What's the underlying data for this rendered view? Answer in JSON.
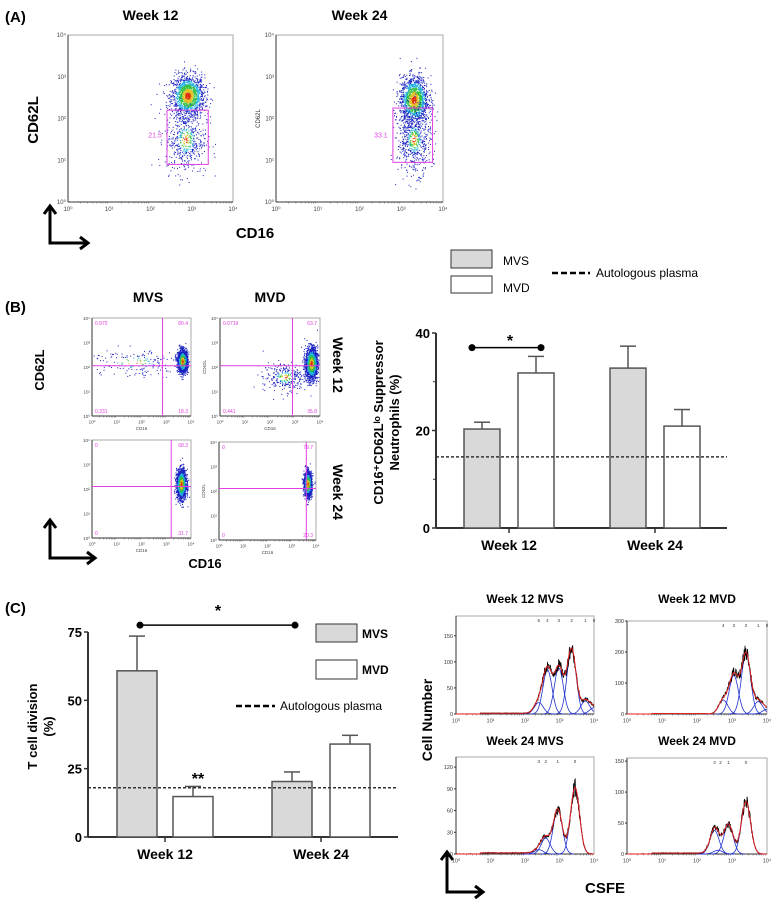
{
  "colors": {
    "gate": "#e040e0",
    "mvs_fill": "#d9d9d9",
    "mvd_fill": "#ffffff",
    "bar_stroke": "#555555",
    "fit": "#e02020",
    "component": "#2030d0",
    "raw": "#000000"
  },
  "log_ticks": [
    "10⁰",
    "10¹",
    "10²",
    "10³",
    "10⁴"
  ],
  "panel_a": {
    "label": "(A)",
    "ylabel": "CD62L",
    "xlabel": "CD16",
    "inner_ylabel": "CD62L",
    "plots": [
      {
        "title": "Week 12",
        "gate_value": "21.5",
        "gate_x": [
          2.4,
          3.4
        ],
        "gate_y": [
          0.9,
          2.2
        ],
        "populations": [
          {
            "x": 2.9,
            "y": 2.55,
            "sx": 0.2,
            "sy": 0.25,
            "n": 1400
          },
          {
            "x": 2.85,
            "y": 1.5,
            "sx": 0.25,
            "sy": 0.4,
            "n": 500
          }
        ]
      },
      {
        "title": "Week 24",
        "gate_value": "33.1",
        "gate_x": [
          2.8,
          3.75
        ],
        "gate_y": [
          0.95,
          2.25
        ],
        "populations": [
          {
            "x": 3.3,
            "y": 2.45,
            "sx": 0.17,
            "sy": 0.28,
            "n": 1400
          },
          {
            "x": 3.3,
            "y": 1.5,
            "sx": 0.2,
            "sy": 0.4,
            "n": 600
          }
        ]
      }
    ]
  },
  "panel_b": {
    "label": "(B)",
    "ylabel": "CD62L",
    "xlabel": "CD16",
    "col_titles": [
      "MVS",
      "MVD"
    ],
    "row_titles": [
      "Week 12",
      "Week 24"
    ],
    "inner_xlabel": "CD16",
    "inner_ylabel": "CD62L",
    "plots": [
      {
        "group": "MVS",
        "week": "Week 12",
        "quadrants": {
          "ul": "0.970",
          "ur": "80.4",
          "ll": "0.331",
          "lr": "18.3"
        },
        "qx": 2.85,
        "qy": 2.05,
        "populations": [
          {
            "x": 3.65,
            "y": 2.25,
            "sx": 0.1,
            "sy": 0.22,
            "n": 1500
          },
          {
            "x": 1.7,
            "y": 2.2,
            "sx": 1.0,
            "sy": 0.3,
            "n": 180
          }
        ]
      },
      {
        "group": "MVD",
        "week": "Week 12",
        "quadrants": {
          "ul": "0.0719",
          "ur": "63.7",
          "ll": "0.441",
          "lr": "35.8"
        },
        "qx": 2.9,
        "qy": 2.05,
        "populations": [
          {
            "x": 3.65,
            "y": 2.15,
            "sx": 0.12,
            "sy": 0.32,
            "n": 1600
          },
          {
            "x": 2.6,
            "y": 1.6,
            "sx": 0.45,
            "sy": 0.3,
            "n": 300
          }
        ]
      },
      {
        "group": "MVS",
        "week": "Week 24",
        "quadrants": {
          "ul": "0",
          "ur": "68.3",
          "ll": "0",
          "lr": "31.7"
        },
        "qx": 3.2,
        "qy": 2.1,
        "populations": [
          {
            "x": 3.6,
            "y": 2.2,
            "sx": 0.1,
            "sy": 0.3,
            "n": 1500
          }
        ]
      },
      {
        "group": "MVD",
        "week": "Week 24",
        "quadrants": {
          "ul": "0",
          "ur": "79.7",
          "ll": "0",
          "lr": "20.3"
        },
        "qx": 3.6,
        "qy": 2.1,
        "populations": [
          {
            "x": 3.65,
            "y": 2.3,
            "sx": 0.08,
            "sy": 0.25,
            "n": 1300
          }
        ]
      }
    ]
  },
  "chart_data": [
    {
      "type": "bar",
      "panel": "B",
      "ylabel_line1": "CD16⁺CD62Lˡᵒ Suppressor",
      "ylabel_line2": "Neutrophils (%)",
      "categories": [
        "Week 12",
        "Week 24"
      ],
      "ylim": [
        0,
        40
      ],
      "yticks": [
        0,
        20,
        40
      ],
      "series": [
        {
          "name": "MVS",
          "values": [
            20.3,
            32.8
          ],
          "errors": [
            1.4,
            4.5
          ]
        },
        {
          "name": "MVD",
          "values": [
            31.8,
            20.9
          ],
          "errors": [
            3.4,
            3.4
          ]
        }
      ],
      "reference_line": {
        "name": "Autologous plasma",
        "value": 14.6
      },
      "significance": [
        {
          "label": "*",
          "between": [
            "Week 12 MVS",
            "Week 12 MVD"
          ],
          "y": 37
        }
      ]
    },
    {
      "type": "bar",
      "panel": "C",
      "label": "(C)",
      "ylabel_line1": "T cell division",
      "ylabel_line2": "(%)",
      "categories": [
        "Week 12",
        "Week 24"
      ],
      "ylim": [
        0,
        75
      ],
      "yticks": [
        0,
        25,
        50,
        75
      ],
      "series": [
        {
          "name": "MVS",
          "values": [
            60.8,
            20.3
          ],
          "errors": [
            12.7,
            3.5
          ]
        },
        {
          "name": "MVD",
          "values": [
            14.8,
            34.0
          ],
          "errors": [
            3.7,
            3.2
          ]
        }
      ],
      "reference_line": {
        "name": "Autologous plasma",
        "value": 18
      },
      "significance": [
        {
          "label": "*",
          "between": [
            "Week 12 MVS",
            "Week 24 MVS"
          ],
          "y": 77.5
        },
        {
          "label": "**",
          "over": "Week 12 MVD"
        }
      ]
    },
    {
      "type": "line",
      "panel": "C histograms",
      "ylabel": "Cell Number",
      "xlabel": "CSFE",
      "xscale": "log",
      "xlim": [
        1,
        10000
      ],
      "histograms": [
        {
          "title": "Week 12 MVS",
          "ylim": [
            0,
            188
          ],
          "yticks": [
            0,
            50,
            100,
            150
          ],
          "generations": [
            {
              "label": "5",
              "x": 2.4,
              "h": 22
            },
            {
              "label": "4",
              "x": 2.65,
              "h": 85
            },
            {
              "label": "3",
              "x": 2.98,
              "h": 88
            },
            {
              "label": "2",
              "x": 3.35,
              "h": 125
            },
            {
              "label": "1",
              "x": 3.75,
              "h": 25
            },
            {
              "label": "0",
              "x": 4.0,
              "h": 12
            }
          ]
        },
        {
          "title": "Week 12 MVD",
          "ylim": [
            0,
            300
          ],
          "yticks": [
            0,
            100,
            200,
            300
          ],
          "generations": [
            {
              "label": "4",
              "x": 2.75,
              "h": 45
            },
            {
              "label": "3",
              "x": 3.05,
              "h": 125
            },
            {
              "label": "2",
              "x": 3.4,
              "h": 195
            },
            {
              "label": "1",
              "x": 3.75,
              "h": 40
            },
            {
              "label": "0",
              "x": 4.0,
              "h": 15
            }
          ]
        },
        {
          "title": "Week 24 MVS",
          "ylim": [
            0,
            134
          ],
          "yticks": [
            0,
            30,
            60,
            90,
            120
          ],
          "generations": [
            {
              "label": "3",
              "x": 2.4,
              "h": 6
            },
            {
              "label": "2",
              "x": 2.6,
              "h": 22
            },
            {
              "label": "1",
              "x": 2.95,
              "h": 62
            },
            {
              "label": "0",
              "x": 3.45,
              "h": 92
            }
          ]
        },
        {
          "title": "Week 24 MVD",
          "ylim": [
            0,
            155
          ],
          "yticks": [
            0,
            50,
            100,
            150
          ],
          "generations": [
            {
              "label": "3",
              "x": 2.5,
              "h": 38
            },
            {
              "label": "2",
              "x": 2.6,
              "h": 6
            },
            {
              "label": "1",
              "x": 2.9,
              "h": 48
            },
            {
              "label": "0",
              "x": 3.4,
              "h": 85
            }
          ]
        }
      ]
    }
  ]
}
